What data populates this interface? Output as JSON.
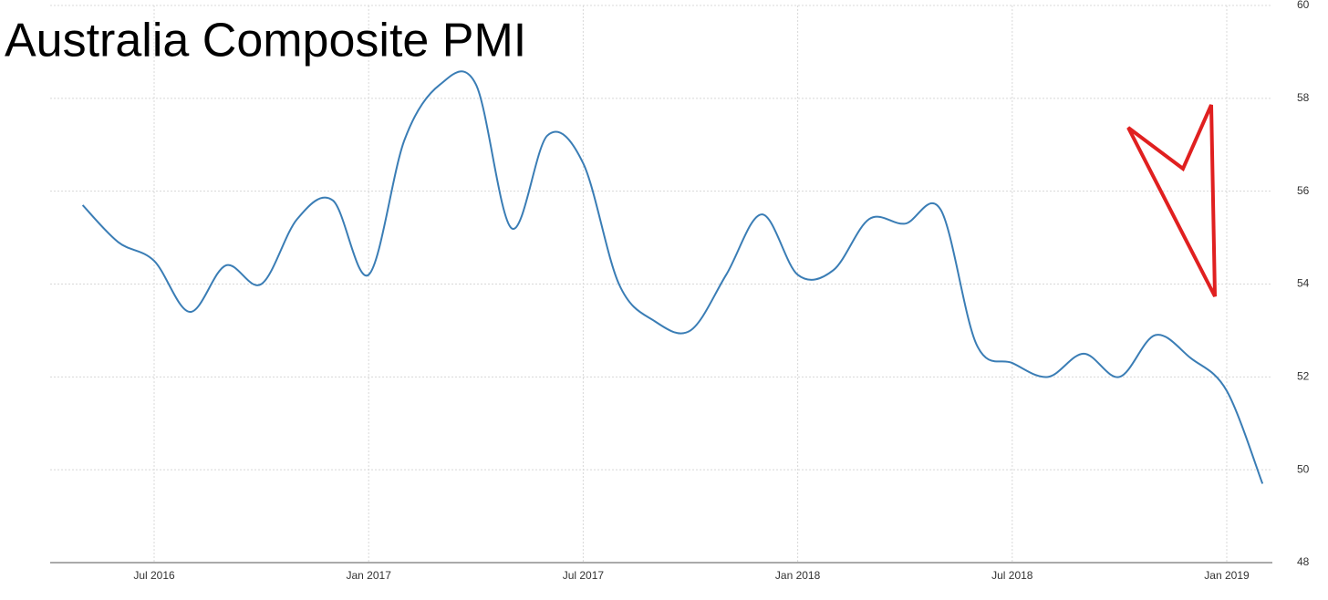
{
  "chart_data": {
    "type": "line",
    "title": "Australia Composite PMI",
    "x": [
      "2016-05",
      "2016-06",
      "2016-07",
      "2016-08",
      "2016-09",
      "2016-10",
      "2016-11",
      "2016-12",
      "2017-01",
      "2017-02",
      "2017-03",
      "2017-04",
      "2017-05",
      "2017-06",
      "2017-07",
      "2017-08",
      "2017-09",
      "2017-10",
      "2017-11",
      "2017-12",
      "2018-01",
      "2018-02",
      "2018-03",
      "2018-04",
      "2018-05",
      "2018-06",
      "2018-07",
      "2018-08",
      "2018-09",
      "2018-10",
      "2018-11",
      "2018-12",
      "2019-01",
      "2019-02"
    ],
    "series": [
      {
        "name": "Australia Composite PMI",
        "color": "#3a7db5",
        "values": [
          55.7,
          54.9,
          54.5,
          53.4,
          54.4,
          54.0,
          55.4,
          55.8,
          54.2,
          57.1,
          58.3,
          58.3,
          55.2,
          57.2,
          56.6,
          54.0,
          53.2,
          53.0,
          54.2,
          55.5,
          54.2,
          54.3,
          55.4,
          55.3,
          55.6,
          52.7,
          52.3,
          52.0,
          52.5,
          52.0,
          52.9,
          52.4,
          51.7,
          49.7
        ]
      }
    ],
    "xlim": [
      "2016-04",
      "2019-03"
    ],
    "xticks": [
      {
        "value": "2016-07",
        "label": "Jul 2016"
      },
      {
        "value": "2017-01",
        "label": "Jan 2017"
      },
      {
        "value": "2017-07",
        "label": "Jul 2017"
      },
      {
        "value": "2018-01",
        "label": "Jan 2018"
      },
      {
        "value": "2018-07",
        "label": "Jul 2018"
      },
      {
        "value": "2019-01",
        "label": "Jan 2019"
      }
    ],
    "ylim": [
      48,
      60
    ],
    "yticks": [
      48,
      50,
      52,
      54,
      56,
      58,
      60
    ],
    "grid": true
  }
}
